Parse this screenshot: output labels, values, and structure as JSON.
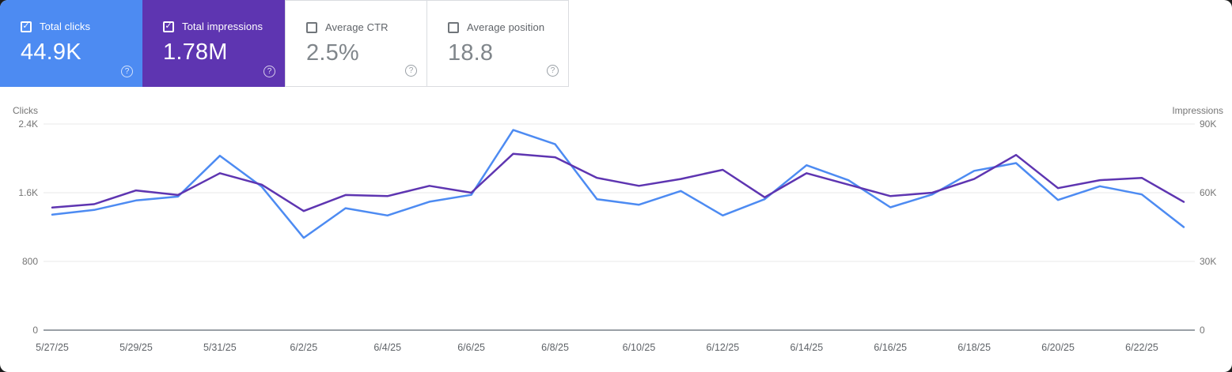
{
  "cards": [
    {
      "label": "Total clicks",
      "value": "44.9K",
      "checked": true,
      "color": "#4d8bf2"
    },
    {
      "label": "Total impressions",
      "value": "1.78M",
      "checked": true,
      "color": "#5e35b1"
    },
    {
      "label": "Average CTR",
      "value": "2.5%",
      "checked": false,
      "color": "#ffffff"
    },
    {
      "label": "Average position",
      "value": "18.8",
      "checked": false,
      "color": "#ffffff"
    }
  ],
  "help_icon_glyph": "?",
  "check_icon_glyph": "✓",
  "chart_data": {
    "type": "line",
    "x": [
      "5/27/25",
      "5/28/25",
      "5/29/25",
      "5/30/25",
      "5/31/25",
      "6/1/25",
      "6/2/25",
      "6/3/25",
      "6/4/25",
      "6/5/25",
      "6/6/25",
      "6/7/25",
      "6/8/25",
      "6/9/25",
      "6/10/25",
      "6/11/25",
      "6/12/25",
      "6/13/25",
      "6/14/25",
      "6/15/25",
      "6/16/25",
      "6/17/25",
      "6/18/25",
      "6/19/25",
      "6/20/25",
      "6/21/25",
      "6/22/25",
      "6/23/25"
    ],
    "x_label_every": 2,
    "series": [
      {
        "name": "Clicks",
        "axis": "left",
        "color": "#4d8bf2",
        "values": [
          1345,
          1400,
          1510,
          1555,
          2030,
          1670,
          1075,
          1420,
          1335,
          1495,
          1575,
          2330,
          2165,
          1525,
          1460,
          1620,
          1335,
          1525,
          1920,
          1745,
          1430,
          1580,
          1855,
          1945,
          1515,
          1675,
          1580,
          1200
        ]
      },
      {
        "name": "Impressions",
        "axis": "right",
        "color": "#5e35b1",
        "values": [
          53500,
          55000,
          61000,
          59000,
          68500,
          63500,
          52000,
          59000,
          58500,
          63000,
          60000,
          77000,
          75500,
          66500,
          63000,
          66000,
          70000,
          58000,
          68500,
          63500,
          58500,
          60000,
          66000,
          76500,
          62000,
          65500,
          66500,
          56000
        ]
      }
    ],
    "y_axis_left": {
      "title": "Clicks",
      "ticks": [
        "0",
        "800",
        "1.6K",
        "2.4K"
      ],
      "tick_values": [
        0,
        800,
        1600,
        2400
      ],
      "max": 2400
    },
    "y_axis_right": {
      "title": "Impressions",
      "ticks": [
        "0",
        "30K",
        "60K",
        "90K"
      ],
      "tick_values": [
        0,
        30000,
        60000,
        90000
      ],
      "max": 90000
    },
    "grid": "horizontal",
    "legend": "none"
  }
}
